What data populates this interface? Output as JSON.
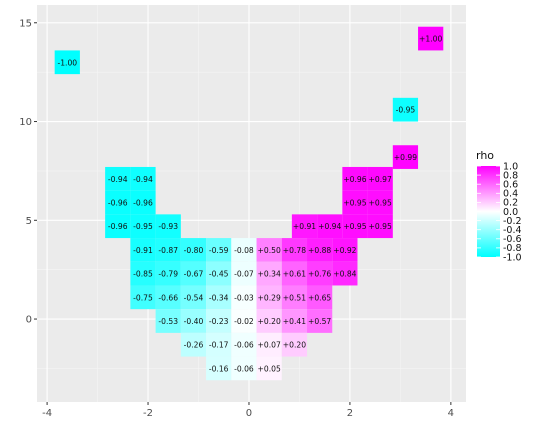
{
  "chart_data": {
    "type": "heatmap",
    "title": "",
    "xlabel": "",
    "ylabel": "",
    "xlim": [
      -4.2,
      4.3
    ],
    "ylim": [
      -4.2,
      15.9
    ],
    "x_ticks": [
      -4,
      -2,
      0,
      2,
      4
    ],
    "y_ticks": [
      0,
      5,
      10,
      15
    ],
    "grid": true,
    "color_scale": {
      "min_color": "#00ffff",
      "mid_color": "#ffffff",
      "max_color": "#ff00ff",
      "domain": [
        -1,
        1
      ]
    },
    "legend": {
      "title": "rho",
      "position": "right",
      "ticks": [
        1.0,
        0.8,
        0.6,
        0.4,
        0.2,
        0.0,
        -0.2,
        -0.4,
        -0.6,
        -0.8,
        -1.0
      ],
      "tick_labels": [
        "1.0",
        "0.8",
        "0.6",
        "0.4",
        "0.2",
        "0.0",
        "-0.2",
        "-0.4",
        "-0.6",
        "-0.8",
        "-1.0"
      ]
    },
    "cells": [
      {
        "x": -3.6,
        "y": 13.0,
        "value": -1.0,
        "label": "-1.00"
      },
      {
        "x": 3.6,
        "y": 14.2,
        "value": 1.0,
        "label": "+1.00"
      },
      {
        "x": 3.1,
        "y": 10.6,
        "value": -0.95,
        "label": "-0.95"
      },
      {
        "x": 3.1,
        "y": 8.2,
        "value": 0.99,
        "label": "+0.99"
      },
      {
        "x": -2.6,
        "y": 7.1,
        "value": -0.94,
        "label": "-0.94"
      },
      {
        "x": -2.1,
        "y": 7.1,
        "value": -0.94,
        "label": "-0.94"
      },
      {
        "x": 2.1,
        "y": 7.1,
        "value": 0.96,
        "label": "+0.96"
      },
      {
        "x": 2.6,
        "y": 7.1,
        "value": 0.97,
        "label": "+0.97"
      },
      {
        "x": -2.6,
        "y": 5.9,
        "value": -0.96,
        "label": "-0.96"
      },
      {
        "x": -2.1,
        "y": 5.9,
        "value": -0.96,
        "label": "-0.96"
      },
      {
        "x": 2.1,
        "y": 5.9,
        "value": 0.95,
        "label": "+0.95"
      },
      {
        "x": 2.6,
        "y": 5.9,
        "value": 0.95,
        "label": "+0.95"
      },
      {
        "x": -2.6,
        "y": 4.7,
        "value": -0.96,
        "label": "-0.96"
      },
      {
        "x": -2.1,
        "y": 4.7,
        "value": -0.95,
        "label": "-0.95"
      },
      {
        "x": -1.6,
        "y": 4.7,
        "value": -0.93,
        "label": "-0.93"
      },
      {
        "x": 1.1,
        "y": 4.7,
        "value": 0.91,
        "label": "+0.91"
      },
      {
        "x": 1.6,
        "y": 4.7,
        "value": 0.94,
        "label": "+0.94"
      },
      {
        "x": 2.1,
        "y": 4.7,
        "value": 0.95,
        "label": "+0.95"
      },
      {
        "x": 2.6,
        "y": 4.7,
        "value": 0.95,
        "label": "+0.95"
      },
      {
        "x": -2.1,
        "y": 3.5,
        "value": -0.91,
        "label": "-0.91"
      },
      {
        "x": -1.6,
        "y": 3.5,
        "value": -0.87,
        "label": "-0.87"
      },
      {
        "x": -1.1,
        "y": 3.5,
        "value": -0.8,
        "label": "-0.80"
      },
      {
        "x": -0.6,
        "y": 3.5,
        "value": -0.59,
        "label": "-0.59"
      },
      {
        "x": -0.1,
        "y": 3.5,
        "value": -0.08,
        "label": "-0.08"
      },
      {
        "x": 0.4,
        "y": 3.5,
        "value": 0.5,
        "label": "+0.50"
      },
      {
        "x": 0.9,
        "y": 3.5,
        "value": 0.78,
        "label": "+0.78"
      },
      {
        "x": 1.4,
        "y": 3.5,
        "value": 0.88,
        "label": "+0.88"
      },
      {
        "x": 1.9,
        "y": 3.5,
        "value": 0.92,
        "label": "+0.92"
      },
      {
        "x": -2.1,
        "y": 2.3,
        "value": -0.85,
        "label": "-0.85"
      },
      {
        "x": -1.6,
        "y": 2.3,
        "value": -0.79,
        "label": "-0.79"
      },
      {
        "x": -1.1,
        "y": 2.3,
        "value": -0.67,
        "label": "-0.67"
      },
      {
        "x": -0.6,
        "y": 2.3,
        "value": -0.45,
        "label": "-0.45"
      },
      {
        "x": -0.1,
        "y": 2.3,
        "value": -0.07,
        "label": "-0.07"
      },
      {
        "x": 0.4,
        "y": 2.3,
        "value": 0.34,
        "label": "+0.34"
      },
      {
        "x": 0.9,
        "y": 2.3,
        "value": 0.61,
        "label": "+0.61"
      },
      {
        "x": 1.4,
        "y": 2.3,
        "value": 0.76,
        "label": "+0.76"
      },
      {
        "x": 1.9,
        "y": 2.3,
        "value": 0.84,
        "label": "+0.84"
      },
      {
        "x": -2.1,
        "y": 1.1,
        "value": -0.75,
        "label": "-0.75"
      },
      {
        "x": -1.6,
        "y": 1.1,
        "value": -0.66,
        "label": "-0.66"
      },
      {
        "x": -1.1,
        "y": 1.1,
        "value": -0.54,
        "label": "-0.54"
      },
      {
        "x": -0.6,
        "y": 1.1,
        "value": -0.34,
        "label": "-0.34"
      },
      {
        "x": -0.1,
        "y": 1.1,
        "value": -0.03,
        "label": "-0.03"
      },
      {
        "x": 0.4,
        "y": 1.1,
        "value": 0.29,
        "label": "+0.29"
      },
      {
        "x": 0.9,
        "y": 1.1,
        "value": 0.51,
        "label": "+0.51"
      },
      {
        "x": 1.4,
        "y": 1.1,
        "value": 0.65,
        "label": "+0.65"
      },
      {
        "x": -1.6,
        "y": -0.1,
        "value": -0.53,
        "label": "-0.53"
      },
      {
        "x": -1.1,
        "y": -0.1,
        "value": -0.4,
        "label": "-0.40"
      },
      {
        "x": -0.6,
        "y": -0.1,
        "value": -0.23,
        "label": "-0.23"
      },
      {
        "x": -0.1,
        "y": -0.1,
        "value": -0.02,
        "label": "-0.02"
      },
      {
        "x": 0.4,
        "y": -0.1,
        "value": 0.2,
        "label": "+0.20"
      },
      {
        "x": 0.9,
        "y": -0.1,
        "value": 0.41,
        "label": "+0.41"
      },
      {
        "x": 1.4,
        "y": -0.1,
        "value": 0.57,
        "label": "+0.57"
      },
      {
        "x": -1.1,
        "y": -1.3,
        "value": -0.26,
        "label": "-0.26"
      },
      {
        "x": -0.6,
        "y": -1.3,
        "value": -0.17,
        "label": "-0.17"
      },
      {
        "x": -0.1,
        "y": -1.3,
        "value": -0.06,
        "label": "-0.06"
      },
      {
        "x": 0.4,
        "y": -1.3,
        "value": 0.07,
        "label": "+0.07"
      },
      {
        "x": 0.9,
        "y": -1.3,
        "value": 0.2,
        "label": "+0.20"
      },
      {
        "x": -0.6,
        "y": -2.5,
        "value": -0.16,
        "label": "-0.16"
      },
      {
        "x": -0.1,
        "y": -2.5,
        "value": -0.06,
        "label": "-0.06"
      },
      {
        "x": 0.4,
        "y": -2.5,
        "value": 0.05,
        "label": "+0.05"
      }
    ],
    "cell_width": 0.5,
    "cell_height": 1.2
  },
  "colors": {
    "panel_background": "#ebebeb",
    "grid_major": "#ffffff",
    "grid_minor": "#f5f5f5",
    "tick_text": "#4d4d4d"
  }
}
